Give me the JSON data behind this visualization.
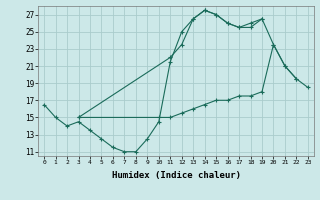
{
  "xlabel": "Humidex (Indice chaleur)",
  "bg_color": "#cce8e8",
  "grid_color": "#aacccc",
  "line_color": "#1a6b5a",
  "line1_x": [
    0,
    1,
    2,
    3,
    4,
    5,
    6,
    7,
    8,
    9,
    10,
    11,
    12,
    13,
    14,
    15,
    16,
    17,
    18,
    19
  ],
  "line1_y": [
    16.5,
    15.0,
    14.0,
    14.5,
    13.5,
    12.5,
    11.5,
    11.0,
    11.0,
    12.5,
    14.5,
    21.5,
    25.0,
    26.5,
    27.5,
    27.0,
    26.0,
    25.5,
    26.0,
    26.5
  ],
  "line2_x": [
    3,
    11,
    12,
    13,
    14,
    15,
    16,
    17,
    18,
    19,
    20,
    21,
    22
  ],
  "line2_y": [
    15.0,
    22.0,
    23.5,
    26.5,
    27.5,
    27.0,
    26.0,
    25.5,
    25.5,
    26.5,
    23.5,
    21.0,
    19.5
  ],
  "line3_x": [
    3,
    10,
    11,
    12,
    13,
    14,
    15,
    16,
    17,
    18,
    19,
    20,
    21,
    22,
    23
  ],
  "line3_y": [
    15.0,
    15.0,
    15.0,
    15.5,
    16.0,
    16.5,
    17.0,
    17.0,
    17.5,
    17.5,
    18.0,
    23.5,
    21.0,
    19.5,
    18.5
  ],
  "ylim": [
    10.5,
    28.0
  ],
  "xlim": [
    -0.5,
    23.5
  ],
  "yticks": [
    11,
    13,
    15,
    17,
    19,
    21,
    23,
    25,
    27
  ],
  "xticks": [
    0,
    1,
    2,
    3,
    4,
    5,
    6,
    7,
    8,
    9,
    10,
    11,
    12,
    13,
    14,
    15,
    16,
    17,
    18,
    19,
    20,
    21,
    22,
    23
  ]
}
